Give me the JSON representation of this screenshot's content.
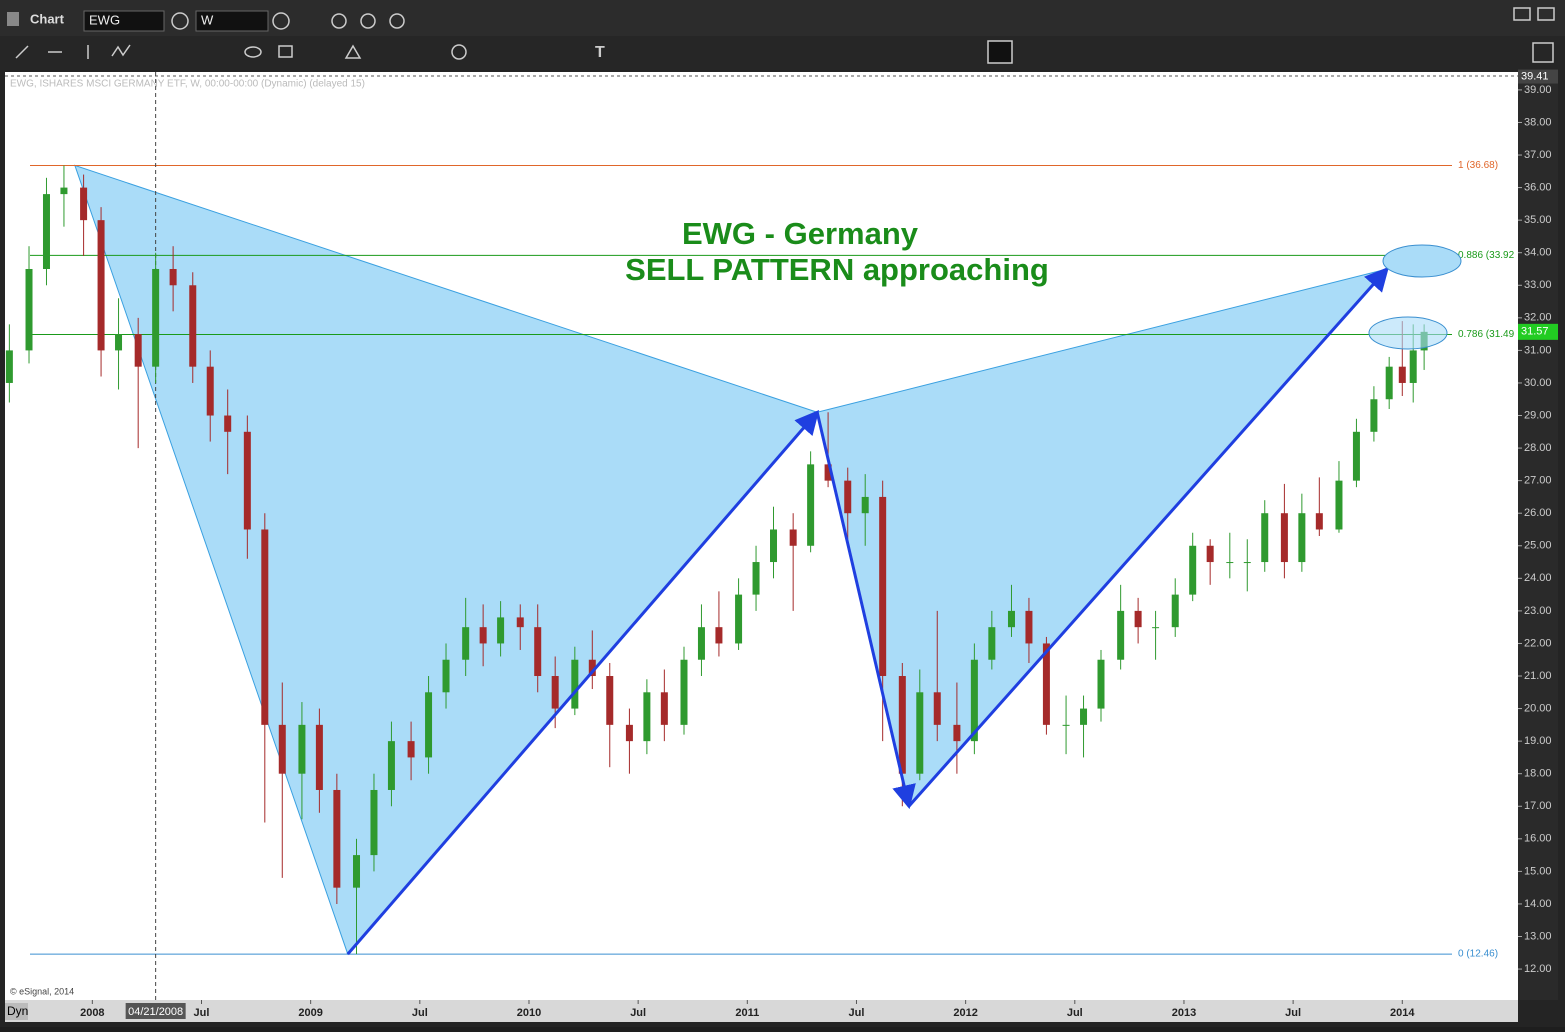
{
  "toolbar": {
    "window_title": "Chart",
    "symbol": "EWG",
    "interval": "W",
    "mode": "Dyn"
  },
  "chart_data": {
    "type": "candlestick",
    "header": "EWG, ISHARES MSCI GERMANY ETF, W, 00:00-00:00 (Dynamic) (delayed 15)",
    "copyright": "© eSignal, 2014",
    "title": "EWG -  Germany",
    "subtitle": "SELL PATTERN approaching",
    "title_color": "#1a8c1a",
    "up_color": "#2f9a2f",
    "down_color": "#a52a2a",
    "x": [
      2007.62,
      2007.71,
      2007.79,
      2007.87,
      2007.96,
      2008.04,
      2008.12,
      2008.21,
      2008.29,
      2008.37,
      2008.46,
      2008.54,
      2008.62,
      2008.71,
      2008.79,
      2008.87,
      2008.96,
      2009.04,
      2009.12,
      2009.21,
      2009.29,
      2009.37,
      2009.46,
      2009.54,
      2009.62,
      2009.71,
      2009.79,
      2009.87,
      2009.96,
      2010.04,
      2010.12,
      2010.21,
      2010.29,
      2010.37,
      2010.46,
      2010.54,
      2010.62,
      2010.71,
      2010.79,
      2010.87,
      2010.96,
      2011.04,
      2011.12,
      2011.21,
      2011.29,
      2011.37,
      2011.46,
      2011.54,
      2011.62,
      2011.71,
      2011.79,
      2011.87,
      2011.96,
      2012.04,
      2012.12,
      2012.21,
      2012.29,
      2012.37,
      2012.46,
      2012.54,
      2012.62,
      2012.71,
      2012.79,
      2012.87,
      2012.96,
      2013.04,
      2013.12,
      2013.21,
      2013.29,
      2013.37,
      2013.46,
      2013.54,
      2013.62,
      2013.71,
      2013.79,
      2013.87,
      2013.94,
      2014.0,
      2014.05,
      2014.1
    ],
    "open": [
      30.0,
      31.0,
      33.5,
      35.8,
      36.0,
      35.0,
      31.0,
      31.5,
      30.5,
      33.5,
      33.0,
      30.5,
      29.0,
      28.5,
      25.5,
      19.5,
      18.0,
      19.5,
      17.5,
      14.5,
      15.5,
      17.5,
      19.0,
      18.5,
      20.5,
      21.5,
      22.5,
      22.0,
      22.8,
      22.5,
      21.0,
      20.0,
      21.5,
      21.0,
      19.5,
      19.0,
      20.5,
      19.5,
      21.5,
      22.5,
      22.0,
      23.5,
      24.5,
      25.5,
      25.0,
      27.5,
      27.0,
      26.0,
      26.5,
      21.0,
      18.0,
      20.5,
      19.5,
      19.0,
      21.5,
      22.5,
      23.0,
      22.0,
      19.5,
      19.5,
      20.0,
      21.5,
      23.0,
      22.5,
      22.5,
      23.5,
      25.0,
      24.5,
      24.5,
      24.5,
      26.0,
      24.5,
      26.0,
      25.5,
      27.0,
      28.5,
      29.5,
      30.5,
      30.0,
      31.0
    ],
    "high": [
      31.8,
      34.2,
      36.3,
      36.68,
      36.4,
      35.4,
      32.6,
      32.0,
      34.0,
      34.2,
      33.4,
      31.0,
      29.8,
      29.0,
      26.0,
      20.8,
      20.2,
      20.0,
      18.0,
      16.0,
      18.0,
      19.6,
      19.6,
      21.0,
      22.0,
      23.4,
      23.2,
      23.3,
      23.2,
      23.2,
      21.6,
      21.9,
      22.4,
      21.4,
      20.0,
      20.9,
      21.2,
      21.9,
      23.2,
      23.6,
      24.0,
      25.0,
      26.2,
      26.0,
      27.9,
      29.1,
      27.4,
      27.2,
      27.0,
      21.4,
      21.2,
      23.0,
      20.8,
      22.0,
      23.0,
      23.8,
      23.4,
      22.2,
      20.4,
      20.4,
      21.8,
      23.8,
      23.4,
      23.0,
      24.0,
      25.4,
      25.2,
      25.4,
      25.2,
      26.4,
      26.9,
      26.6,
      27.1,
      27.6,
      28.9,
      29.9,
      30.8,
      31.9,
      31.8,
      31.8
    ],
    "low": [
      29.4,
      30.6,
      33.0,
      34.8,
      33.9,
      30.2,
      29.8,
      28.0,
      30.0,
      32.2,
      30.0,
      28.2,
      27.2,
      24.6,
      16.5,
      14.8,
      16.6,
      16.8,
      14.0,
      12.46,
      15.0,
      17.0,
      17.8,
      18.0,
      20.0,
      21.0,
      21.3,
      21.6,
      21.8,
      20.5,
      19.4,
      19.8,
      20.6,
      18.2,
      18.0,
      18.6,
      19.0,
      19.2,
      21.0,
      21.6,
      21.8,
      23.0,
      24.0,
      23.0,
      24.8,
      26.8,
      25.2,
      25.0,
      19.0,
      17.0,
      17.8,
      19.0,
      18.0,
      18.6,
      21.2,
      22.2,
      21.4,
      19.2,
      18.6,
      18.5,
      19.6,
      21.2,
      22.0,
      21.5,
      22.2,
      23.3,
      23.8,
      24.0,
      23.6,
      24.2,
      24.0,
      24.2,
      25.3,
      25.4,
      26.8,
      28.2,
      29.2,
      29.6,
      29.4,
      30.4
    ],
    "close": [
      31.0,
      33.5,
      35.8,
      36.0,
      35.0,
      31.0,
      31.5,
      30.5,
      33.5,
      33.0,
      30.5,
      29.0,
      28.5,
      25.5,
      19.5,
      18.0,
      19.5,
      17.5,
      14.5,
      15.5,
      17.5,
      19.0,
      18.5,
      20.5,
      21.5,
      22.5,
      22.0,
      22.8,
      22.5,
      21.0,
      20.0,
      21.5,
      21.0,
      19.5,
      19.0,
      20.5,
      19.5,
      21.5,
      22.5,
      22.0,
      23.5,
      24.5,
      25.5,
      25.0,
      27.5,
      27.0,
      26.0,
      26.5,
      21.0,
      18.0,
      20.5,
      19.5,
      19.0,
      21.5,
      22.5,
      23.0,
      22.0,
      19.5,
      19.5,
      20.0,
      21.5,
      23.0,
      22.5,
      22.5,
      23.5,
      25.0,
      24.5,
      24.5,
      24.5,
      26.0,
      24.5,
      26.0,
      25.5,
      27.0,
      28.5,
      29.5,
      30.5,
      30.0,
      31.0,
      31.57
    ],
    "pattern": {
      "color": "#1f3fe0",
      "fill": "#aadcf8",
      "x": [
        2007.92,
        2009.17,
        2011.32,
        2011.74,
        2013.93
      ],
      "y": [
        36.68,
        12.46,
        29.1,
        17.0,
        33.5
      ]
    },
    "fib_levels": [
      {
        "label": "1 (36.68)",
        "value": 36.68,
        "color": "#e0662a"
      },
      {
        "label": "0.886 (33.92",
        "value": 33.92,
        "color": "#1a9a1a"
      },
      {
        "label": "0.786 (31.49",
        "value": 31.49,
        "color": "#1a9a1a"
      },
      {
        "label": "0 (12.46)",
        "value": 12.46,
        "color": "#3a8fd0"
      }
    ],
    "cursor": {
      "x": 2008.29,
      "label": "04/21/2008"
    },
    "last_price": 31.57,
    "top_price": 39.41,
    "xlim": [
      2007.6,
      2014.53
    ],
    "ylim": [
      11.05,
      39.55
    ],
    "xticks": [
      {
        "value": 2008,
        "label": "2008"
      },
      {
        "value": 2008.5,
        "label": "Jul"
      },
      {
        "value": 2009,
        "label": "2009"
      },
      {
        "value": 2009.5,
        "label": "Jul"
      },
      {
        "value": 2010,
        "label": "2010"
      },
      {
        "value": 2010.5,
        "label": "Jul"
      },
      {
        "value": 2011,
        "label": "2011"
      },
      {
        "value": 2011.5,
        "label": "Jul"
      },
      {
        "value": 2012,
        "label": "2012"
      },
      {
        "value": 2012.5,
        "label": "Jul"
      },
      {
        "value": 2013,
        "label": "2013"
      },
      {
        "value": 2013.5,
        "label": "Jul"
      },
      {
        "value": 2014,
        "label": "2014"
      }
    ],
    "yticks": [
      {
        "value": 12,
        "label": "12.00"
      },
      {
        "value": 13,
        "label": "13.00"
      },
      {
        "value": 14,
        "label": "14.00"
      },
      {
        "value": 15,
        "label": "15.00"
      },
      {
        "value": 16,
        "label": "16.00"
      },
      {
        "value": 17,
        "label": "17.00"
      },
      {
        "value": 18,
        "label": "18.00"
      },
      {
        "value": 19,
        "label": "19.00"
      },
      {
        "value": 20,
        "label": "20.00"
      },
      {
        "value": 21,
        "label": "21.00"
      },
      {
        "value": 22,
        "label": "22.00"
      },
      {
        "value": 23,
        "label": "23.00"
      },
      {
        "value": 24,
        "label": "24.00"
      },
      {
        "value": 25,
        "label": "25.00"
      },
      {
        "value": 26,
        "label": "26.00"
      },
      {
        "value": 27,
        "label": "27.00"
      },
      {
        "value": 28,
        "label": "28.00"
      },
      {
        "value": 29,
        "label": "29.00"
      },
      {
        "value": 30,
        "label": "30.00"
      },
      {
        "value": 31,
        "label": "31.00"
      },
      {
        "value": 32,
        "label": "32.00"
      },
      {
        "value": 33,
        "label": "33.00"
      },
      {
        "value": 34,
        "label": "34.00"
      },
      {
        "value": 35,
        "label": "35.00"
      },
      {
        "value": 36,
        "label": "36.00"
      },
      {
        "value": 37,
        "label": "37.00"
      },
      {
        "value": 38,
        "label": "38.00"
      },
      {
        "value": 39,
        "label": "39.00"
      }
    ]
  }
}
